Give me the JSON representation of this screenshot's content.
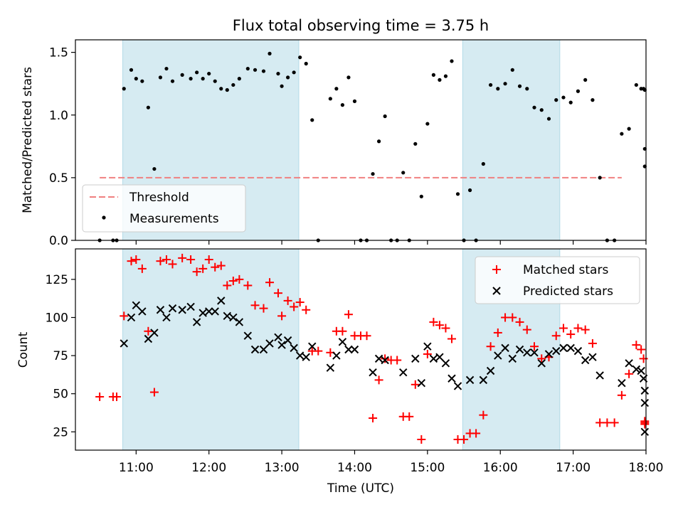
{
  "chart_data": [
    {
      "type": "scatter",
      "title": "Flux total observing time = 3.75 h",
      "ylabel": "Matched/Predicted stars",
      "xlabel": "",
      "xlim": [
        "10:10",
        "18:00"
      ],
      "ylim": [
        0,
        1.6
      ],
      "y_ticks": [
        0.0,
        0.5,
        1.0,
        1.5
      ],
      "y_tick_labels": [
        "0.0",
        "0.5",
        "1.0",
        "1.5"
      ],
      "shaded_intervals": [
        [
          "10:49",
          "13:14"
        ],
        [
          "15:29",
          "16:49"
        ]
      ],
      "threshold": {
        "label": "Threshold",
        "y": 0.5,
        "x_range": [
          "10:30",
          "17:40"
        ],
        "color": "#f08080"
      },
      "legend": {
        "placement": "lower-left",
        "entries": [
          "Threshold",
          "Measurements"
        ]
      },
      "series": [
        {
          "name": "Measurements",
          "marker": "dot",
          "color": "#000000",
          "points": [
            [
              "10:30",
              0.0
            ],
            [
              "10:41",
              0.0
            ],
            [
              "10:44",
              0.0
            ],
            [
              "10:50",
              1.21
            ],
            [
              "10:56",
              1.36
            ],
            [
              "11:00",
              1.29
            ],
            [
              "11:05",
              1.27
            ],
            [
              "11:10",
              1.06
            ],
            [
              "11:15",
              0.57
            ],
            [
              "11:20",
              1.3
            ],
            [
              "11:25",
              1.37
            ],
            [
              "11:30",
              1.27
            ],
            [
              "11:38",
              1.32
            ],
            [
              "11:45",
              1.29
            ],
            [
              "11:50",
              1.34
            ],
            [
              "11:55",
              1.29
            ],
            [
              "12:00",
              1.33
            ],
            [
              "12:05",
              1.27
            ],
            [
              "12:10",
              1.21
            ],
            [
              "12:15",
              1.2
            ],
            [
              "12:20",
              1.24
            ],
            [
              "12:25",
              1.29
            ],
            [
              "12:32",
              1.37
            ],
            [
              "12:38",
              1.36
            ],
            [
              "12:45",
              1.35
            ],
            [
              "12:50",
              1.49
            ],
            [
              "12:57",
              1.33
            ],
            [
              "13:00",
              1.23
            ],
            [
              "13:05",
              1.3
            ],
            [
              "13:10",
              1.34
            ],
            [
              "13:15",
              1.46
            ],
            [
              "13:20",
              1.41
            ],
            [
              "13:25",
              0.96
            ],
            [
              "13:30",
              0.0
            ],
            [
              "13:40",
              1.13
            ],
            [
              "13:45",
              1.21
            ],
            [
              "13:50",
              1.08
            ],
            [
              "13:55",
              1.3
            ],
            [
              "14:00",
              1.11
            ],
            [
              "14:05",
              0.0
            ],
            [
              "14:10",
              0.0
            ],
            [
              "14:15",
              0.53
            ],
            [
              "14:20",
              0.79
            ],
            [
              "14:25",
              0.99
            ],
            [
              "14:30",
              0.0
            ],
            [
              "14:35",
              0.0
            ],
            [
              "14:40",
              0.54
            ],
            [
              "14:45",
              0.0
            ],
            [
              "14:50",
              0.77
            ],
            [
              "14:55",
              0.35
            ],
            [
              "15:00",
              0.93
            ],
            [
              "15:05",
              1.32
            ],
            [
              "15:10",
              1.28
            ],
            [
              "15:15",
              1.31
            ],
            [
              "15:20",
              1.43
            ],
            [
              "15:25",
              0.37
            ],
            [
              "15:30",
              0.0
            ],
            [
              "15:35",
              0.4
            ],
            [
              "15:40",
              0.0
            ],
            [
              "15:46",
              0.61
            ],
            [
              "15:52",
              1.24
            ],
            [
              "15:58",
              1.21
            ],
            [
              "16:04",
              1.25
            ],
            [
              "16:10",
              1.36
            ],
            [
              "16:16",
              1.23
            ],
            [
              "16:22",
              1.21
            ],
            [
              "16:28",
              1.06
            ],
            [
              "16:34",
              1.04
            ],
            [
              "16:40",
              0.97
            ],
            [
              "16:46",
              1.12
            ],
            [
              "16:52",
              1.14
            ],
            [
              "16:58",
              1.1
            ],
            [
              "17:04",
              1.19
            ],
            [
              "17:10",
              1.28
            ],
            [
              "17:16",
              1.12
            ],
            [
              "17:22",
              0.5
            ],
            [
              "17:28",
              0.0
            ],
            [
              "17:34",
              0.0
            ],
            [
              "17:40",
              0.85
            ],
            [
              "17:46",
              0.89
            ],
            [
              "17:52",
              1.24
            ],
            [
              "17:56",
              1.21
            ],
            [
              "17:58",
              1.21
            ],
            [
              "17:59",
              0.59
            ],
            [
              "17:59",
              0.73
            ],
            [
              "17:59",
              1.2
            ]
          ]
        }
      ]
    },
    {
      "type": "scatter",
      "title": "",
      "xlabel": "Time (UTC)",
      "ylabel": "Count",
      "xlim": [
        "10:10",
        "18:00"
      ],
      "ylim": [
        13,
        145
      ],
      "x_ticks": [
        "11:00",
        "12:00",
        "13:00",
        "14:00",
        "15:00",
        "16:00",
        "17:00",
        "18:00"
      ],
      "y_ticks": [
        25,
        50,
        75,
        100,
        125
      ],
      "y_tick_labels": [
        "25",
        "50",
        "75",
        "100",
        "125"
      ],
      "shaded_intervals": [
        [
          "10:49",
          "13:14"
        ],
        [
          "15:29",
          "16:49"
        ]
      ],
      "legend": {
        "placement": "top-right",
        "entries": [
          "Matched stars",
          "Predicted stars"
        ]
      },
      "series": [
        {
          "name": "Matched stars",
          "marker": "plus",
          "color": "#ff0000",
          "points": [
            [
              "10:30",
              48
            ],
            [
              "10:41",
              48
            ],
            [
              "10:44",
              48
            ],
            [
              "10:50",
              101
            ],
            [
              "10:56",
              137
            ],
            [
              "11:00",
              138
            ],
            [
              "11:05",
              132
            ],
            [
              "11:10",
              91
            ],
            [
              "11:15",
              51
            ],
            [
              "11:20",
              137
            ],
            [
              "11:25",
              138
            ],
            [
              "11:30",
              135
            ],
            [
              "11:38",
              139
            ],
            [
              "11:45",
              138
            ],
            [
              "11:50",
              130
            ],
            [
              "11:55",
              132
            ],
            [
              "12:00",
              138
            ],
            [
              "12:05",
              133
            ],
            [
              "12:10",
              134
            ],
            [
              "12:15",
              121
            ],
            [
              "12:20",
              124
            ],
            [
              "12:25",
              125
            ],
            [
              "12:32",
              121
            ],
            [
              "12:38",
              108
            ],
            [
              "12:45",
              106
            ],
            [
              "12:50",
              123
            ],
            [
              "12:57",
              116
            ],
            [
              "13:00",
              101
            ],
            [
              "13:05",
              111
            ],
            [
              "13:10",
              107
            ],
            [
              "13:15",
              110
            ],
            [
              "13:20",
              105
            ],
            [
              "13:25",
              78
            ],
            [
              "13:30",
              78
            ],
            [
              "13:40",
              77
            ],
            [
              "13:45",
              91
            ],
            [
              "13:50",
              91
            ],
            [
              "13:55",
              102
            ],
            [
              "14:00",
              88
            ],
            [
              "14:05",
              88
            ],
            [
              "14:10",
              88
            ],
            [
              "14:15",
              34
            ],
            [
              "14:20",
              59
            ],
            [
              "14:25",
              73
            ],
            [
              "14:30",
              72
            ],
            [
              "14:35",
              72
            ],
            [
              "14:40",
              35
            ],
            [
              "14:45",
              35
            ],
            [
              "14:50",
              56
            ],
            [
              "14:55",
              20
            ],
            [
              "15:00",
              76
            ],
            [
              "15:05",
              97
            ],
            [
              "15:10",
              95
            ],
            [
              "15:15",
              93
            ],
            [
              "15:20",
              86
            ],
            [
              "15:25",
              20
            ],
            [
              "15:30",
              20
            ],
            [
              "15:35",
              24
            ],
            [
              "15:40",
              24
            ],
            [
              "15:46",
              36
            ],
            [
              "15:52",
              81
            ],
            [
              "15:58",
              90
            ],
            [
              "16:04",
              100
            ],
            [
              "16:10",
              100
            ],
            [
              "16:16",
              97
            ],
            [
              "16:22",
              92
            ],
            [
              "16:28",
              81
            ],
            [
              "16:34",
              73
            ],
            [
              "16:40",
              74
            ],
            [
              "16:46",
              88
            ],
            [
              "16:52",
              93
            ],
            [
              "16:58",
              89
            ],
            [
              "17:04",
              93
            ],
            [
              "17:10",
              92
            ],
            [
              "17:16",
              83
            ],
            [
              "17:22",
              31
            ],
            [
              "17:28",
              31
            ],
            [
              "17:34",
              31
            ],
            [
              "17:40",
              49
            ],
            [
              "17:46",
              63
            ],
            [
              "17:52",
              82
            ],
            [
              "17:56",
              79
            ],
            [
              "17:58",
              73
            ],
            [
              "17:59",
              31
            ],
            [
              "17:59",
              32
            ],
            [
              "17:59",
              30
            ]
          ]
        },
        {
          "name": "Predicted stars",
          "marker": "x",
          "color": "#000000",
          "points": [
            [
              "10:50",
              83
            ],
            [
              "10:56",
              100
            ],
            [
              "11:00",
              108
            ],
            [
              "11:05",
              104
            ],
            [
              "11:10",
              86
            ],
            [
              "11:15",
              90
            ],
            [
              "11:20",
              105
            ],
            [
              "11:25",
              100
            ],
            [
              "11:30",
              106
            ],
            [
              "11:38",
              105
            ],
            [
              "11:45",
              107
            ],
            [
              "11:50",
              97
            ],
            [
              "11:55",
              103
            ],
            [
              "12:00",
              104
            ],
            [
              "12:05",
              104
            ],
            [
              "12:10",
              111
            ],
            [
              "12:15",
              101
            ],
            [
              "12:20",
              100
            ],
            [
              "12:25",
              97
            ],
            [
              "12:32",
              88
            ],
            [
              "12:38",
              79
            ],
            [
              "12:45",
              79
            ],
            [
              "12:50",
              83
            ],
            [
              "12:57",
              87
            ],
            [
              "13:00",
              82
            ],
            [
              "13:05",
              85
            ],
            [
              "13:10",
              80
            ],
            [
              "13:15",
              75
            ],
            [
              "13:20",
              74
            ],
            [
              "13:25",
              81
            ],
            [
              "13:40",
              67
            ],
            [
              "13:45",
              75
            ],
            [
              "13:50",
              84
            ],
            [
              "13:55",
              79
            ],
            [
              "14:00",
              79
            ],
            [
              "14:15",
              64
            ],
            [
              "14:20",
              73
            ],
            [
              "14:25",
              72
            ],
            [
              "14:40",
              64
            ],
            [
              "14:50",
              73
            ],
            [
              "14:55",
              57
            ],
            [
              "15:00",
              81
            ],
            [
              "15:05",
              73
            ],
            [
              "15:10",
              74
            ],
            [
              "15:15",
              70
            ],
            [
              "15:20",
              60
            ],
            [
              "15:25",
              55
            ],
            [
              "15:35",
              59
            ],
            [
              "15:46",
              59
            ],
            [
              "15:52",
              65
            ],
            [
              "15:58",
              75
            ],
            [
              "16:04",
              80
            ],
            [
              "16:10",
              73
            ],
            [
              "16:16",
              79
            ],
            [
              "16:22",
              77
            ],
            [
              "16:28",
              77
            ],
            [
              "16:34",
              70
            ],
            [
              "16:40",
              76
            ],
            [
              "16:46",
              78
            ],
            [
              "16:52",
              80
            ],
            [
              "16:58",
              80
            ],
            [
              "17:04",
              78
            ],
            [
              "17:10",
              72
            ],
            [
              "17:16",
              74
            ],
            [
              "17:22",
              62
            ],
            [
              "17:40",
              57
            ],
            [
              "17:46",
              70
            ],
            [
              "17:52",
              66
            ],
            [
              "17:56",
              65
            ],
            [
              "17:58",
              60
            ],
            [
              "17:59",
              52
            ],
            [
              "17:59",
              44
            ],
            [
              "17:59",
              25
            ]
          ]
        }
      ]
    }
  ]
}
